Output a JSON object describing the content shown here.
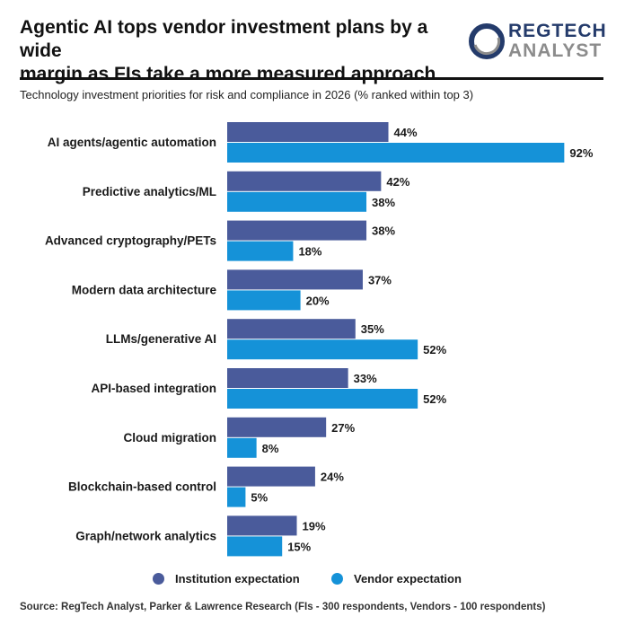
{
  "header": {
    "title_line1": "Agentic AI tops vendor investment plans by a wide",
    "title_line2": "margin as FIs take a more measured approach",
    "subtitle": "Technology investment priorities for risk and compliance in 2026 (% ranked within top 3)",
    "logo_line1": "REGTECH",
    "logo_line2": "ANALYST"
  },
  "colors": {
    "institution": "#4a5b9b",
    "vendor": "#1592d8",
    "logo_ring": "#243b6b",
    "logo_ring_accent": "#8c8c8c"
  },
  "chart_data": {
    "type": "bar",
    "orientation": "horizontal",
    "categories": [
      "AI agents/agentic automation",
      "Predictive analytics/ML",
      "Advanced cryptography/PETs",
      "Modern data architecture",
      "LLMs/generative AI",
      "API-based integration",
      "Cloud migration",
      "Blockchain-based control",
      "Graph/network analytics"
    ],
    "series": [
      {
        "name": "Institution expectation",
        "values": [
          44,
          42,
          38,
          37,
          35,
          33,
          27,
          24,
          19
        ]
      },
      {
        "name": "Vendor expectation",
        "values": [
          92,
          38,
          18,
          20,
          52,
          52,
          8,
          5,
          15
        ]
      }
    ],
    "value_suffix": "%",
    "xlim": [
      0,
      92
    ],
    "grid": false,
    "legend_position": "bottom"
  },
  "source": "Source: RegTech Analyst, Parker & Lawrence Research (FIs - 300 respondents, Vendors - 100 respondents)"
}
